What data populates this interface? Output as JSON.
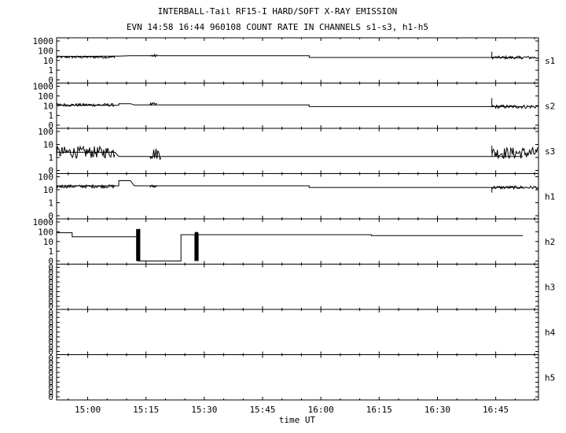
{
  "chart_data": {
    "type": "line",
    "title": "INTERBALL-Tail RF15-I HARD/SOFT X-RAY EMISSION",
    "subtitle": "EVN 14:58 16:44 960108  COUNT RATE IN CHANNELS s1-s3, h1-h5",
    "xlabel": "time UT",
    "x_range": [
      "14:52",
      "16:56"
    ],
    "x_ticks": [
      "15:00",
      "15:15",
      "15:30",
      "15:45",
      "16:00",
      "16:15",
      "16:30",
      "16:45"
    ],
    "y_scale": "log",
    "grid": false,
    "panels": [
      {
        "name": "s1",
        "y_ticks": [
          "1000",
          "100",
          "10",
          "1",
          "0"
        ],
        "points": [
          [
            "14:52",
            25
          ],
          [
            "15:08",
            28
          ],
          [
            "15:11",
            30
          ],
          [
            "15:57",
            30
          ],
          [
            "15:57",
            20
          ],
          [
            "16:44",
            20
          ],
          [
            "16:52",
            18
          ]
        ],
        "noisy_segments": [
          {
            "from": "14:52",
            "to": "15:07",
            "level": 22,
            "spread": 0.12
          },
          {
            "from": "15:16",
            "to": "15:18",
            "level": 30,
            "spread": 0.15
          },
          {
            "from": "16:44",
            "to": "16:56",
            "level": 20,
            "spread": 0.15
          }
        ],
        "spikes": [
          {
            "t": "16:44",
            "to": 80
          }
        ]
      },
      {
        "name": "s2",
        "y_ticks": [
          "1000",
          "100",
          "10",
          "1",
          "0"
        ],
        "points": [
          [
            "14:52",
            11
          ],
          [
            "15:08",
            11
          ],
          [
            "15:08",
            16
          ],
          [
            "15:11",
            16
          ],
          [
            "15:12",
            12
          ],
          [
            "15:57",
            12
          ],
          [
            "15:57",
            8
          ],
          [
            "16:44",
            8
          ],
          [
            "16:52",
            8
          ]
        ],
        "noisy_segments": [
          {
            "from": "14:52",
            "to": "15:07",
            "level": 12,
            "spread": 0.15
          },
          {
            "from": "15:16",
            "to": "15:18",
            "level": 14,
            "spread": 0.15
          },
          {
            "from": "16:44",
            "to": "16:56",
            "level": 8,
            "spread": 0.18
          }
        ],
        "spikes": [
          {
            "t": "16:44",
            "to": 60
          }
        ]
      },
      {
        "name": "s3",
        "y_ticks": [
          "100",
          "10",
          "1",
          "0"
        ],
        "points": [
          [
            "14:52",
            2.5
          ],
          [
            "15:07",
            2.5
          ],
          [
            "15:08",
            1.2
          ],
          [
            "15:11",
            1.2
          ],
          [
            "15:12",
            1.2
          ],
          [
            "16:44",
            1.2
          ],
          [
            "16:52",
            1.2
          ]
        ],
        "noisy_segments": [
          {
            "from": "14:52",
            "to": "15:07",
            "level": 2.5,
            "spread": 0.45
          },
          {
            "from": "15:16",
            "to": "15:19",
            "level": 2,
            "spread": 0.45
          },
          {
            "from": "16:44",
            "to": "16:56",
            "level": 2.2,
            "spread": 0.45
          }
        ],
        "spikes": [
          {
            "t": "16:44",
            "to": 8
          }
        ]
      },
      {
        "name": "h1",
        "y_ticks": [
          "100",
          "10",
          "1",
          "0"
        ],
        "points": [
          [
            "14:52",
            20
          ],
          [
            "15:08",
            20
          ],
          [
            "15:08",
            50
          ],
          [
            "15:11",
            50
          ],
          [
            "15:12",
            20
          ],
          [
            "15:57",
            20
          ],
          [
            "15:57",
            15
          ],
          [
            "16:44",
            15
          ],
          [
            "16:52",
            15
          ]
        ],
        "noisy_segments": [
          {
            "from": "14:52",
            "to": "15:07",
            "level": 18,
            "spread": 0.12
          },
          {
            "from": "15:16",
            "to": "15:18",
            "level": 18,
            "spread": 0.12
          },
          {
            "from": "16:44",
            "to": "16:56",
            "level": 15,
            "spread": 0.12
          }
        ],
        "spikes": [
          {
            "t": "16:44",
            "to": 6
          }
        ]
      },
      {
        "name": "h2",
        "y_ticks": [
          "1000",
          "100",
          "10",
          "1",
          "0"
        ],
        "points": [
          [
            "14:52",
            80
          ],
          [
            "14:56",
            80
          ],
          [
            "14:56",
            30
          ],
          [
            "15:13",
            30
          ],
          [
            "15:13",
            0
          ],
          [
            "15:15",
            0
          ],
          [
            "15:16",
            0
          ],
          [
            "15:24",
            0
          ],
          [
            "15:24",
            50
          ],
          [
            "15:28",
            50
          ],
          [
            "15:28",
            50
          ],
          [
            "16:13",
            50
          ],
          [
            "16:13",
            40
          ],
          [
            "16:52",
            40
          ]
        ],
        "noisy_segments": [],
        "spikes": [
          {
            "t": "15:13",
            "to": 200,
            "band": 1.0
          },
          {
            "t": "15:28",
            "to": 100,
            "band": 1.0
          }
        ]
      },
      {
        "name": "h3",
        "y_ticks": [
          "0",
          "0",
          "0",
          "0",
          "0",
          "0",
          "0",
          "0",
          "0"
        ],
        "points": [],
        "noisy_segments": [],
        "spikes": []
      },
      {
        "name": "h4",
        "y_ticks": [
          "0",
          "0",
          "0",
          "0",
          "0",
          "0",
          "0",
          "0",
          "0"
        ],
        "points": [],
        "noisy_segments": [],
        "spikes": []
      },
      {
        "name": "h5",
        "y_ticks": [
          "0",
          "0",
          "0",
          "0",
          "0",
          "0",
          "0",
          "0",
          "0"
        ],
        "points": [],
        "noisy_segments": [],
        "spikes": []
      }
    ]
  }
}
